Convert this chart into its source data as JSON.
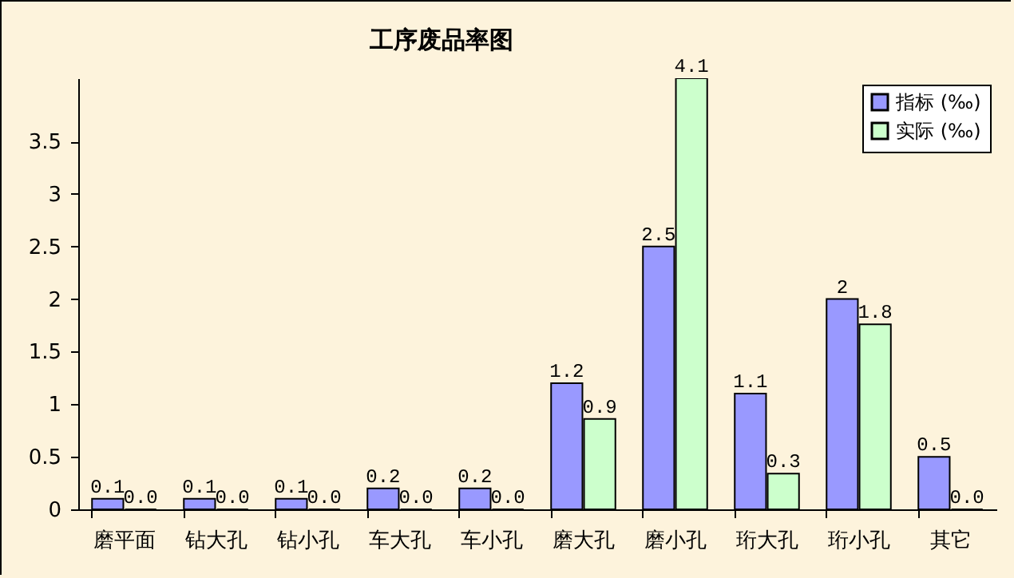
{
  "chart_data": {
    "type": "bar",
    "title": "工序废品率图",
    "categories": [
      "磨平面",
      "钻大孔",
      "钻小孔",
      "车大孔",
      "车小孔",
      "磨大孔",
      "磨小孔",
      "珩大孔",
      "珩小孔",
      "其它"
    ],
    "series": [
      {
        "name": "指标 (‰)",
        "color": "#9999ff",
        "values": [
          0.1,
          0.1,
          0.1,
          0.2,
          0.2,
          1.2,
          2.5,
          1.1,
          2,
          0.5
        ],
        "value_labels": [
          "0.1",
          "0.1",
          "0.1",
          "0.2",
          "0.2",
          "1.2",
          "2.5",
          "1.1",
          "2",
          "0.5"
        ]
      },
      {
        "name": "实际 (‰)",
        "color": "#ccffcc",
        "values": [
          0,
          0,
          0,
          0,
          0,
          0.86,
          4.1,
          0.34,
          1.76,
          0
        ],
        "value_labels": [
          "0.0",
          "0.0",
          "0.0",
          "0.0",
          "0.0",
          "0.9",
          "4.1",
          "0.3",
          "1.8",
          "0.0"
        ]
      }
    ],
    "ylim": [
      0,
      4.1
    ],
    "yticks": [
      0,
      0.5,
      1,
      1.5,
      2,
      2.5,
      3,
      3.5
    ],
    "legend": "top right"
  }
}
